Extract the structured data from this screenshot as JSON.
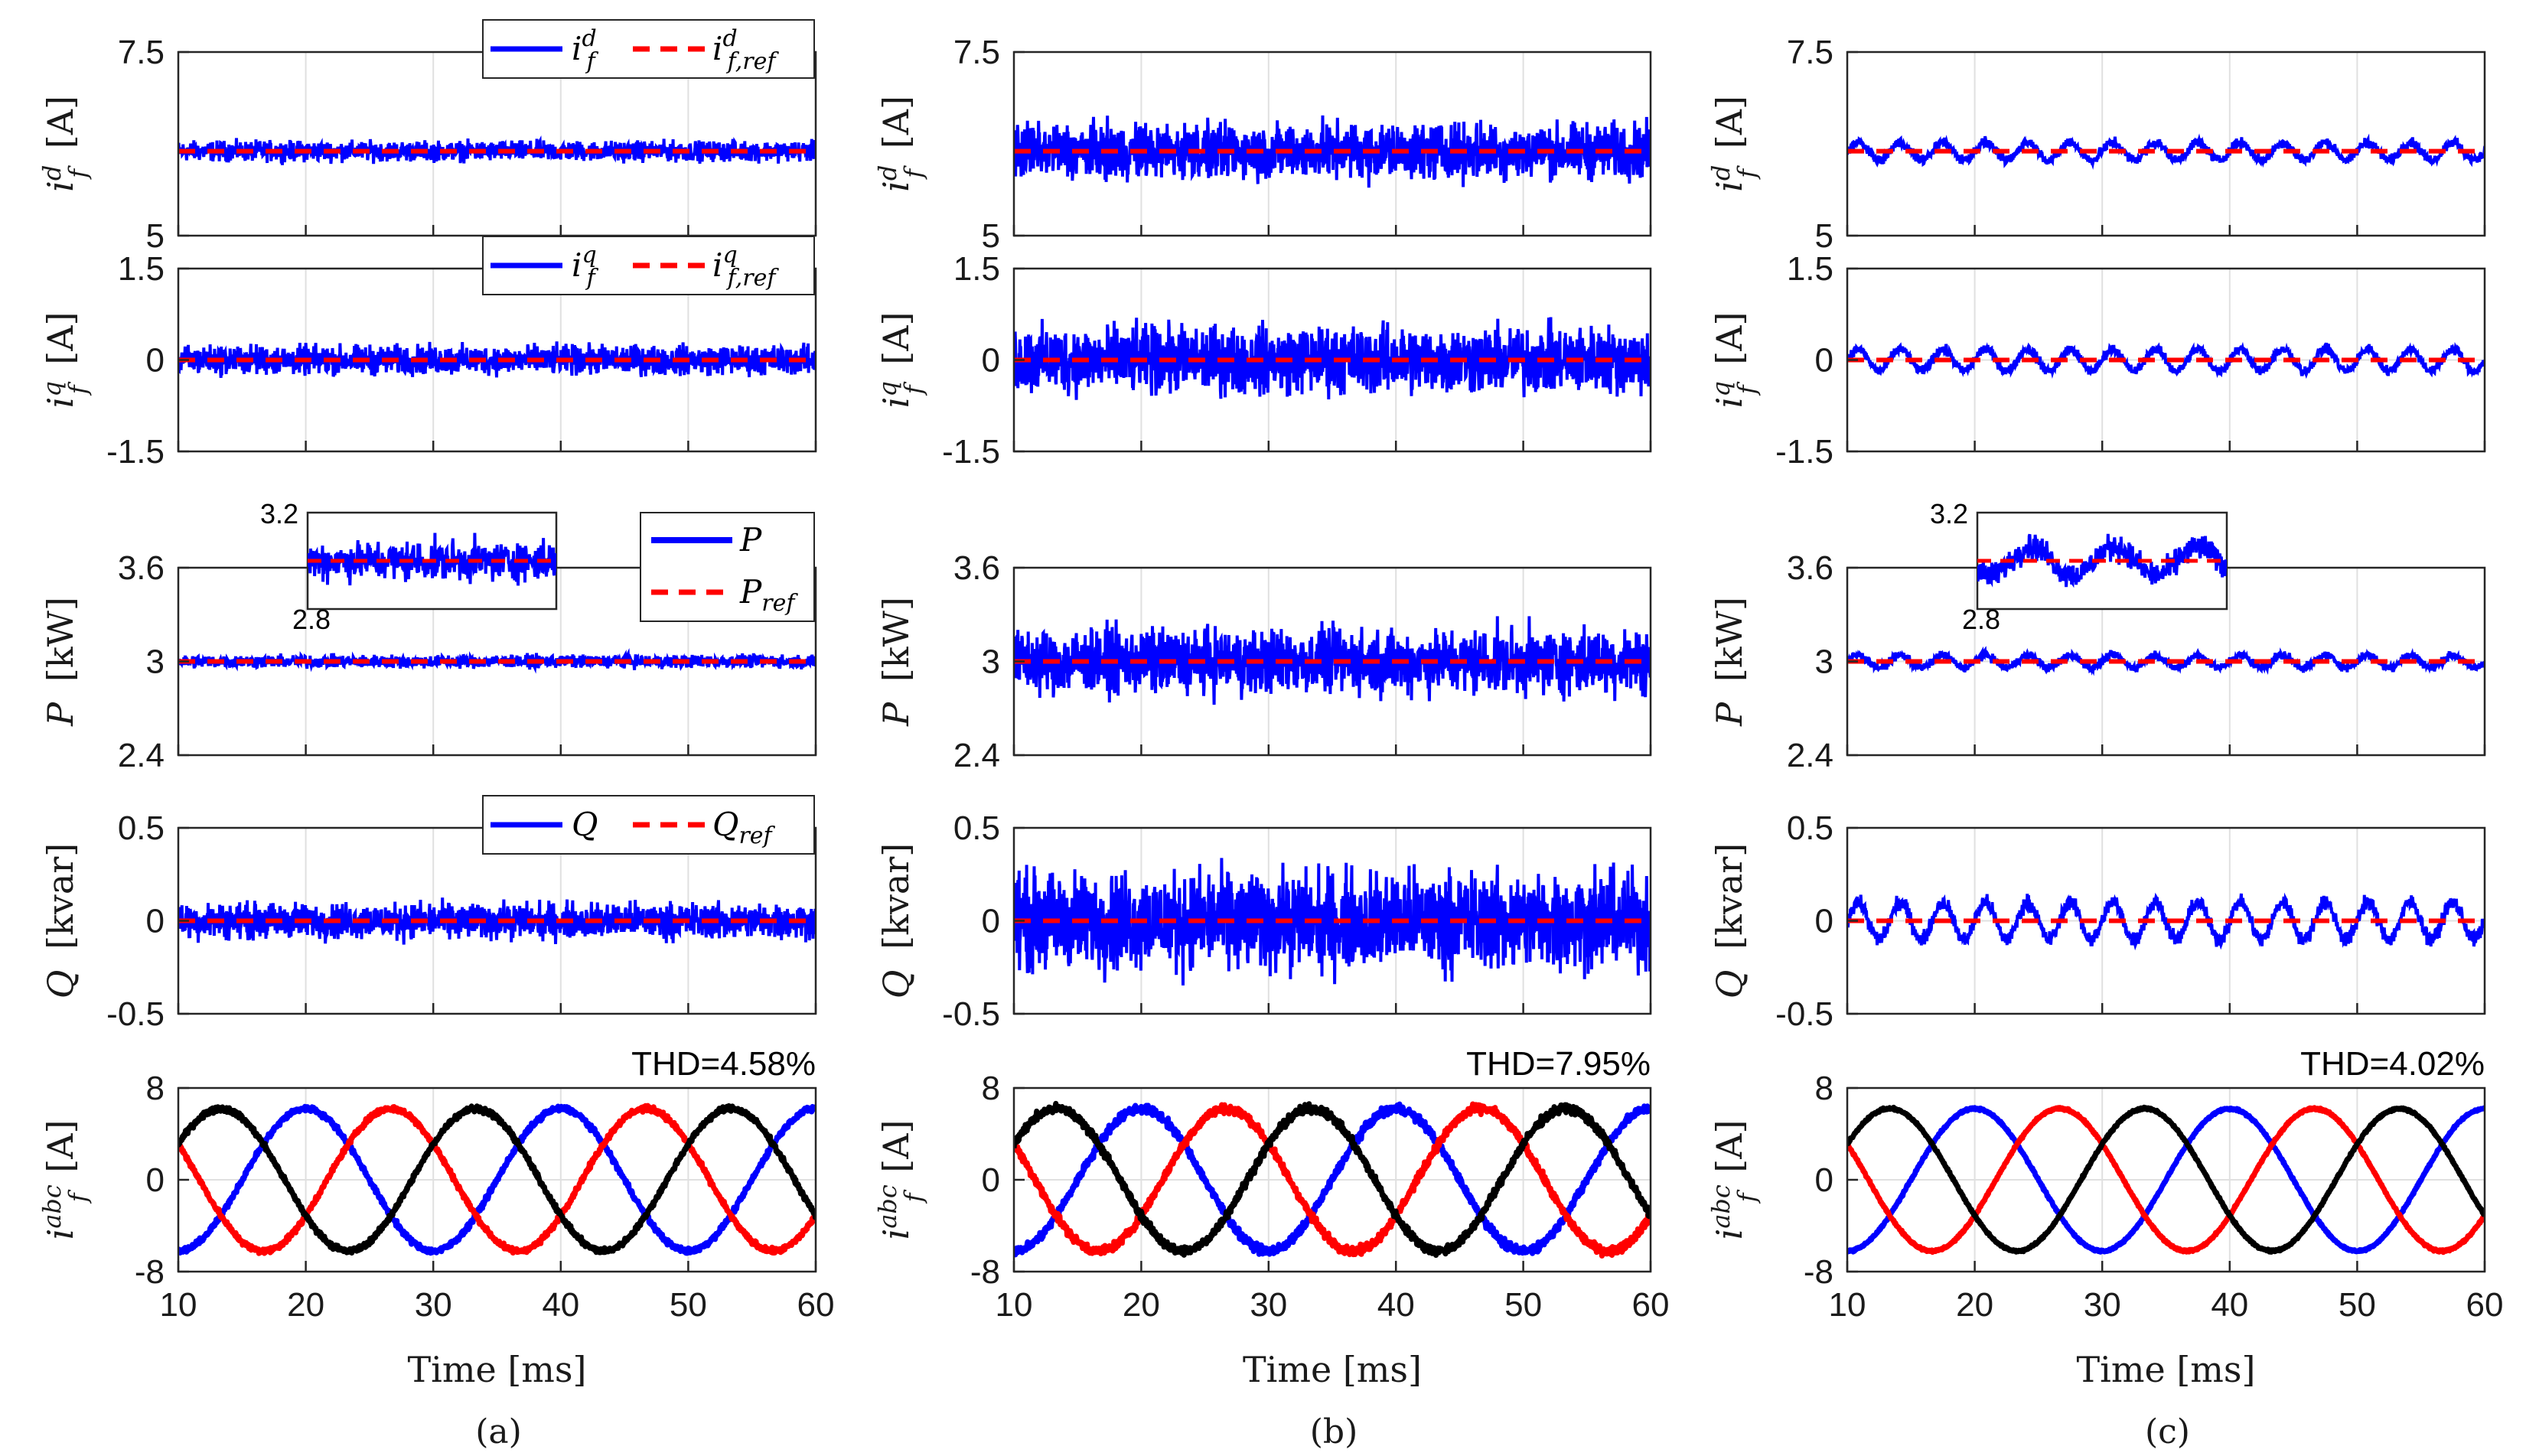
{
  "colors": {
    "measured": "#0000ff",
    "reference": "#ff0000",
    "phase_c": "#000000",
    "grid": "#e0e0e0"
  },
  "chart_data": [
    {
      "type": "line",
      "caption": "(a)",
      "thd": "THD=4.58%",
      "x_label": "Time [ms]",
      "x_ticks": [
        "10",
        "20",
        "30",
        "40",
        "50",
        "60"
      ],
      "xlim": [
        10,
        60
      ],
      "rows": [
        {
          "id": "id",
          "ylabel": "i_f^d [A]",
          "ylim": [
            5,
            7.5
          ],
          "yticks": [
            "7.5",
            "5"
          ],
          "ref": 6.15,
          "amp": 0.2,
          "wobble": 0,
          "legend": [
            "i_f^d",
            "i_f,ref^d"
          ],
          "legend_layout": "horizontal"
        },
        {
          "id": "iq",
          "ylabel": "i_f^q [A]",
          "ylim": [
            -1.5,
            1.5
          ],
          "yticks": [
            "1.5",
            "0",
            "-1.5"
          ],
          "ref": 0,
          "amp": 0.35,
          "wobble": 0,
          "legend": [
            "i_f^q",
            "i_f,ref^q"
          ],
          "legend_layout": "horizontal"
        },
        {
          "id": "P",
          "ylabel": "P [kW]",
          "ylim": [
            2.4,
            3.6
          ],
          "yticks": [
            "3.6",
            "3",
            "2.4"
          ],
          "ref": 3.0,
          "amp": 0.06,
          "wobble": 0,
          "legend": [
            "P",
            "P_ref"
          ],
          "legend_layout": "vertical",
          "inset": {
            "yticks": [
              "3.2",
              "2.8"
            ],
            "ylim": [
              2.8,
              3.2
            ],
            "ref": 3.0,
            "amp": 0.12,
            "wobble": 0
          }
        },
        {
          "id": "Q",
          "ylabel": "Q [kvar]",
          "ylim": [
            -0.5,
            0.5
          ],
          "yticks": [
            "0.5",
            "0",
            "-0.5"
          ],
          "ref": 0,
          "amp": 0.14,
          "wobble": 0,
          "legend": [
            "Q",
            "Q_ref"
          ],
          "legend_layout": "horizontal"
        },
        {
          "id": "iabc",
          "ylabel": "i_f^abc [A]",
          "ylim": [
            -8,
            8
          ],
          "yticks": [
            "8",
            "0",
            "-8"
          ],
          "amplitude": 6.2,
          "frequency_hz": 50,
          "noise": 0.35
        }
      ]
    },
    {
      "type": "line",
      "caption": "(b)",
      "thd": "THD=7.95%",
      "x_label": "Time [ms]",
      "x_ticks": [
        "10",
        "20",
        "30",
        "40",
        "50",
        "60"
      ],
      "xlim": [
        10,
        60
      ],
      "rows": [
        {
          "id": "id",
          "ylabel": "i_f^d [A]",
          "ylim": [
            5,
            7.5
          ],
          "yticks": [
            "7.5",
            "5"
          ],
          "ref": 6.15,
          "amp": 0.55,
          "wobble": 0
        },
        {
          "id": "iq",
          "ylabel": "i_f^q [A]",
          "ylim": [
            -1.5,
            1.5
          ],
          "yticks": [
            "1.5",
            "0",
            "-1.5"
          ],
          "ref": 0,
          "amp": 0.8,
          "wobble": 0
        },
        {
          "id": "P",
          "ylabel": "P [kW]",
          "ylim": [
            2.4,
            3.6
          ],
          "yticks": [
            "3.6",
            "3",
            "2.4"
          ],
          "ref": 3.0,
          "amp": 0.3,
          "wobble": 0
        },
        {
          "id": "Q",
          "ylabel": "Q [kvar]",
          "ylim": [
            -0.5,
            0.5
          ],
          "yticks": [
            "0.5",
            "0",
            "-0.5"
          ],
          "ref": 0,
          "amp": 0.38,
          "wobble": 0
        },
        {
          "id": "iabc",
          "ylabel": "i_f^abc [A]",
          "ylim": [
            -8,
            8
          ],
          "yticks": [
            "8",
            "0",
            "-8"
          ],
          "amplitude": 6.2,
          "frequency_hz": 50,
          "noise": 0.55
        }
      ]
    },
    {
      "type": "line",
      "caption": "(c)",
      "thd": "THD=4.02%",
      "x_label": "Time [ms]",
      "x_ticks": [
        "10",
        "20",
        "30",
        "40",
        "50",
        "60"
      ],
      "xlim": [
        10,
        60
      ],
      "rows": [
        {
          "id": "id",
          "ylabel": "i_f^d [A]",
          "ylim": [
            5,
            7.5
          ],
          "yticks": [
            "7.5",
            "5"
          ],
          "ref": 6.15,
          "amp": 0.1,
          "wobble": 0.12
        },
        {
          "id": "iq",
          "ylabel": "i_f^q [A]",
          "ylim": [
            -1.5,
            1.5
          ],
          "yticks": [
            "1.5",
            "0",
            "-1.5"
          ],
          "ref": 0,
          "amp": 0.12,
          "wobble": 0.18
        },
        {
          "id": "P",
          "ylabel": "P [kW]",
          "ylim": [
            2.4,
            3.6
          ],
          "yticks": [
            "3.6",
            "3",
            "2.4"
          ],
          "ref": 3.0,
          "amp": 0.04,
          "wobble": 0.04,
          "inset": {
            "yticks": [
              "3.2",
              "2.8"
            ],
            "ylim": [
              2.8,
              3.2
            ],
            "ref": 3.0,
            "amp": 0.08,
            "wobble": 0.06
          }
        },
        {
          "id": "Q",
          "ylabel": "Q [kvar]",
          "ylim": [
            -0.5,
            0.5
          ],
          "yticks": [
            "0.5",
            "0",
            "-0.5"
          ],
          "ref": 0,
          "amp": 0.06,
          "wobble": 0.1
        },
        {
          "id": "iabc",
          "ylabel": "i_f^abc [A]",
          "ylim": [
            -8,
            8
          ],
          "yticks": [
            "8",
            "0",
            "-8"
          ],
          "amplitude": 6.2,
          "frequency_hz": 50,
          "noise": 0.15
        }
      ]
    }
  ]
}
